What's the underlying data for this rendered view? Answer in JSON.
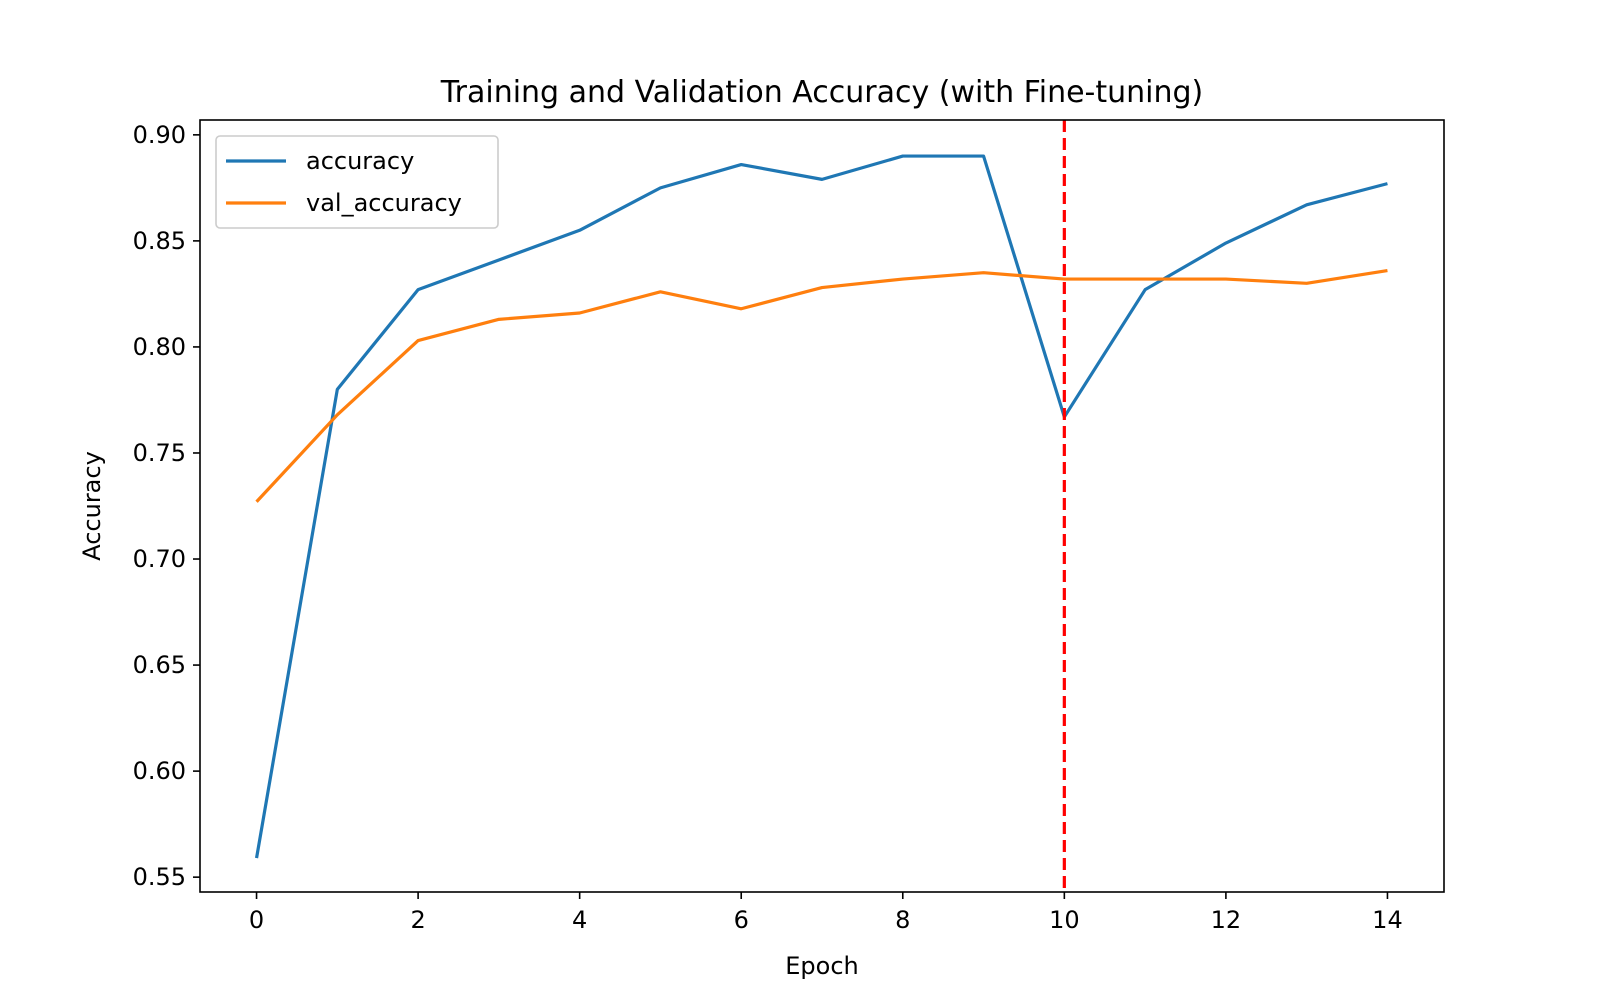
{
  "chart_data": {
    "type": "line",
    "title": "Training and Validation Accuracy (with Fine-tuning)",
    "xlabel": "Epoch",
    "ylabel": "Accuracy",
    "xlim": [
      -0.7,
      14.7
    ],
    "ylim": [
      0.543,
      0.907
    ],
    "xticks": [
      0,
      2,
      4,
      6,
      8,
      10,
      12,
      14
    ],
    "xtick_labels": [
      "0",
      "2",
      "4",
      "6",
      "8",
      "10",
      "12",
      "14"
    ],
    "yticks": [
      0.55,
      0.6,
      0.65,
      0.7,
      0.75,
      0.8,
      0.85,
      0.9
    ],
    "ytick_labels": [
      "0.55",
      "0.60",
      "0.65",
      "0.70",
      "0.75",
      "0.80",
      "0.85",
      "0.90"
    ],
    "x": [
      0,
      1,
      2,
      3,
      4,
      5,
      6,
      7,
      8,
      9,
      10,
      11,
      12,
      13,
      14
    ],
    "series": [
      {
        "name": "accuracy",
        "color": "#1f77b4",
        "values": [
          0.559,
          0.78,
          0.827,
          0.841,
          0.855,
          0.875,
          0.886,
          0.879,
          0.89,
          0.89,
          0.767,
          0.827,
          0.849,
          0.867,
          0.877
        ]
      },
      {
        "name": "val_accuracy",
        "color": "#ff7f0e",
        "values": [
          0.727,
          0.768,
          0.803,
          0.813,
          0.816,
          0.826,
          0.818,
          0.828,
          0.832,
          0.835,
          0.832,
          0.832,
          0.832,
          0.83,
          0.836
        ]
      }
    ],
    "vline": {
      "x": 10,
      "color": "#ff0000",
      "style": "dashed"
    },
    "legend_position": "upper-left",
    "grid": false
  }
}
